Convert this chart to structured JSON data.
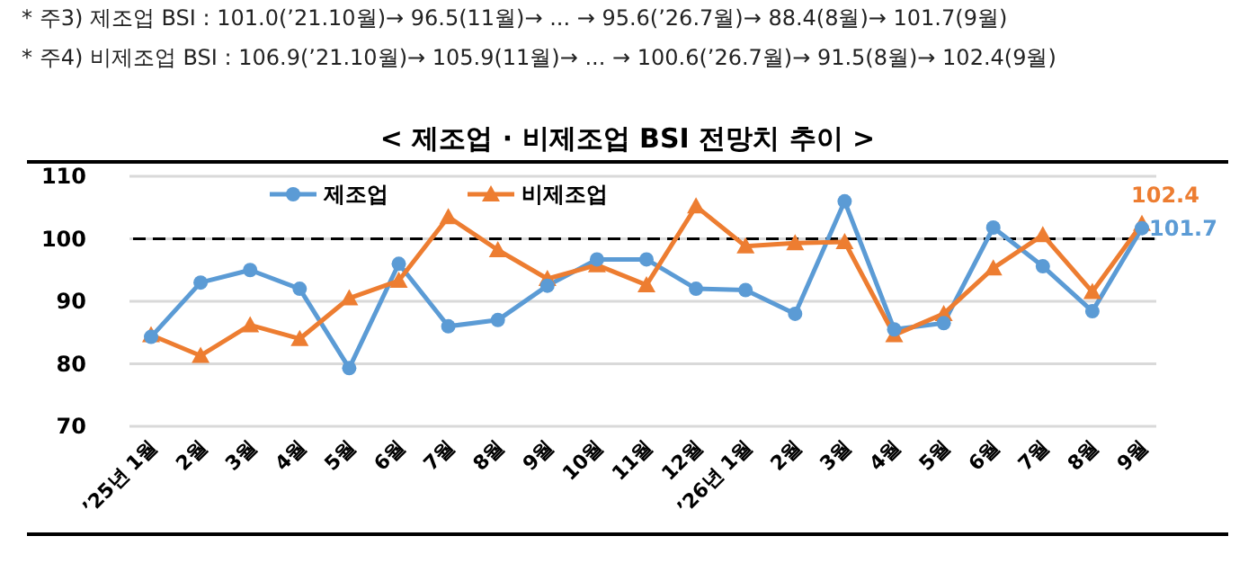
{
  "chart_data": {
    "type": "line",
    "title": "< 제조업 · 비제조업 BSI 전망치 추이 >",
    "annotations": [
      "*  주3) 제조업 BSI : 101.0(’21.10월)→ 96.5(11월)→ ... → 95.6(’26.7월)→ 88.4(8월)→ 101.7(9월)",
      "*  주4) 비제조업 BSI : 106.9(’21.10월)→ 105.9(11월)→ ... → 100.6(’26.7월)→ 91.5(8월)→ 102.4(9월)"
    ],
    "categories": [
      "’25년 1월",
      "2월",
      "3월",
      "4월",
      "5월",
      "6월",
      "7월",
      "8월",
      "9월",
      "10월",
      "11월",
      "12월",
      "’26년 1월",
      "2월",
      "3월",
      "4월",
      "5월",
      "6월",
      "7월",
      "8월",
      "9월"
    ],
    "series": [
      {
        "name": "제조업",
        "color": "#5b9bd5",
        "marker": "circle",
        "values": [
          84.3,
          93,
          95,
          92,
          79.3,
          96,
          86,
          87,
          92.5,
          96.7,
          96.7,
          92,
          91.8,
          88,
          106,
          85.5,
          86.5,
          101.8,
          95.6,
          88.4,
          101.7
        ],
        "value_labels": [
          null,
          null,
          null,
          null,
          null,
          null,
          null,
          null,
          null,
          null,
          null,
          null,
          null,
          null,
          null,
          null,
          null,
          null,
          null,
          null,
          "101.7"
        ]
      },
      {
        "name": "비제조업",
        "color": "#ed7d31",
        "marker": "triangle",
        "values": [
          84.6,
          81.3,
          86.2,
          84,
          90.5,
          93.3,
          103.5,
          98.2,
          93.6,
          95.8,
          92.6,
          105.2,
          98.8,
          99.3,
          99.5,
          84.6,
          88,
          95.3,
          100.6,
          91.5,
          102.4
        ],
        "value_labels": [
          null,
          null,
          null,
          null,
          null,
          null,
          null,
          null,
          null,
          null,
          null,
          null,
          null,
          null,
          null,
          null,
          null,
          null,
          null,
          null,
          "102.4"
        ]
      }
    ],
    "ylim": [
      70,
      110
    ],
    "yticks": [
      70,
      80,
      90,
      100,
      110
    ],
    "grid": "y",
    "legend": "top",
    "ref_lines": [
      {
        "axis": "y",
        "value": 100,
        "color": "#000000",
        "line_style": "dashed"
      }
    ]
  }
}
